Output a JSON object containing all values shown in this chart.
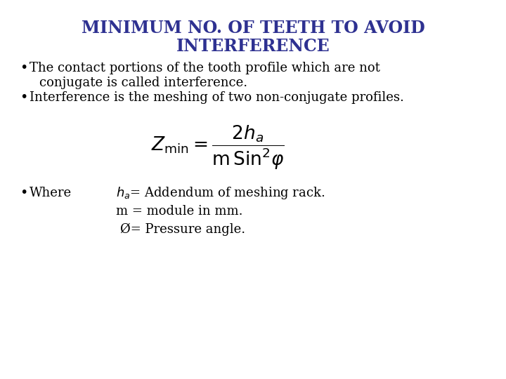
{
  "title_line1": "MINIMUM NO. OF TEETH TO AVOID",
  "title_line2": "INTERFERENCE",
  "title_color": "#2E3191",
  "title_fontsize": 17,
  "background_color": "#FFFFFF",
  "bullet1_line1": "The contact portions of the tooth profile which are not",
  "bullet1_line2": "conjugate is called interference.",
  "bullet2": "Interference is the meshing of two non-conjugate profiles.",
  "bullet_fontsize": 13,
  "bullet_color": "#000000",
  "formula_fontsize": 13,
  "where_label": "Where",
  "def_fontsize": 13,
  "def3": "Ø= Pressure angle."
}
